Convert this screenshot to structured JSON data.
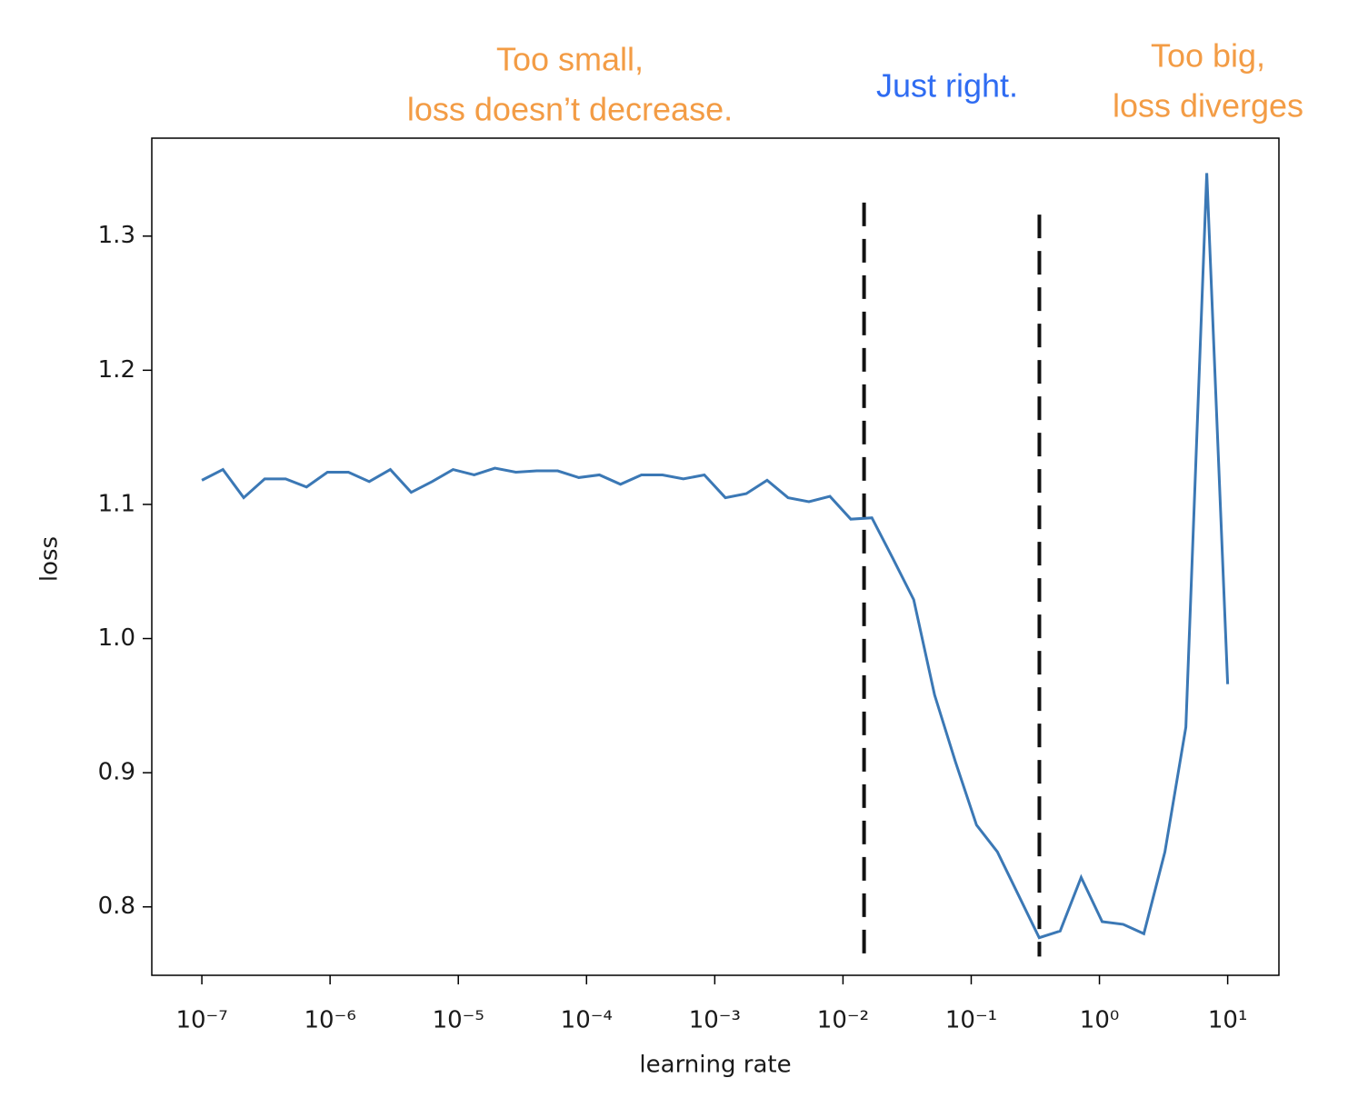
{
  "chart_data": {
    "type": "line",
    "xlabel": "learning rate",
    "ylabel": "loss",
    "xscale": "log",
    "xlim": [
      4.07e-08,
      25.1
    ],
    "ylim": [
      0.749,
      1.373
    ],
    "xticks": [
      {
        "value": 1e-07,
        "label": "10⁻⁷"
      },
      {
        "value": 1e-06,
        "label": "10⁻⁶"
      },
      {
        "value": 1e-05,
        "label": "10⁻⁵"
      },
      {
        "value": 0.0001,
        "label": "10⁻⁴"
      },
      {
        "value": 0.001,
        "label": "10⁻³"
      },
      {
        "value": 0.01,
        "label": "10⁻²"
      },
      {
        "value": 0.1,
        "label": "10⁻¹"
      },
      {
        "value": 1,
        "label": "10⁰"
      },
      {
        "value": 10,
        "label": "10¹"
      }
    ],
    "yticks": [
      0.8,
      0.9,
      {
        "value": 1,
        "label": "1.0"
      },
      1.1,
      1.2,
      1.3
    ],
    "grid": false,
    "x": [
      1e-07,
      1.46e-07,
      2.12e-07,
      3.09e-07,
      4.5e-07,
      6.55e-07,
      9.54e-07,
      1.39e-06,
      2.02e-06,
      2.95e-06,
      4.29e-06,
      6.25e-06,
      9.1e-06,
      1.33e-05,
      1.93e-05,
      2.81e-05,
      4.09e-05,
      5.96e-05,
      8.69e-05,
      0.000126,
      0.000184,
      0.000268,
      0.000391,
      0.000569,
      0.000829,
      0.00121,
      0.00176,
      0.00256,
      0.00373,
      0.00543,
      0.00791,
      0.0115,
      0.0168,
      0.0244,
      0.0356,
      0.0518,
      0.0754,
      0.11,
      0.16,
      0.233,
      0.339,
      0.494,
      0.72,
      1.05,
      1.53,
      2.22,
      3.24,
      4.72,
      6.87,
      10
    ],
    "series": [
      {
        "color": "#3b78b5",
        "values": [
          1.118,
          1.126,
          1.105,
          1.119,
          1.119,
          1.113,
          1.124,
          1.124,
          1.117,
          1.126,
          1.109,
          1.117,
          1.126,
          1.122,
          1.127,
          1.124,
          1.125,
          1.125,
          1.12,
          1.122,
          1.115,
          1.122,
          1.122,
          1.119,
          1.122,
          1.105,
          1.108,
          1.118,
          1.105,
          1.102,
          1.106,
          1.089,
          1.09,
          1.06,
          1.029,
          0.958,
          0.908,
          0.861,
          0.841,
          0.809,
          0.777,
          0.782,
          0.822,
          0.789,
          0.787,
          0.78,
          0.841,
          0.934,
          1.347,
          0.966
        ]
      }
    ],
    "vlines": [
      {
        "x": 0.0146,
        "y": [
          0.763,
          1.325
        ],
        "color": "#111111"
      },
      {
        "x": 0.34,
        "y": [
          0.763,
          1.316
        ],
        "color": "#111111"
      }
    ],
    "annotations": [
      {
        "text": [
          "Too small,",
          "loss doesn’t decrease."
        ],
        "color": "#f39c45"
      },
      {
        "text": [
          "Just right."
        ],
        "color": "#2f6cf2"
      },
      {
        "text": [
          "Too big,",
          "loss diverges"
        ],
        "color": "#f39c45"
      }
    ]
  }
}
